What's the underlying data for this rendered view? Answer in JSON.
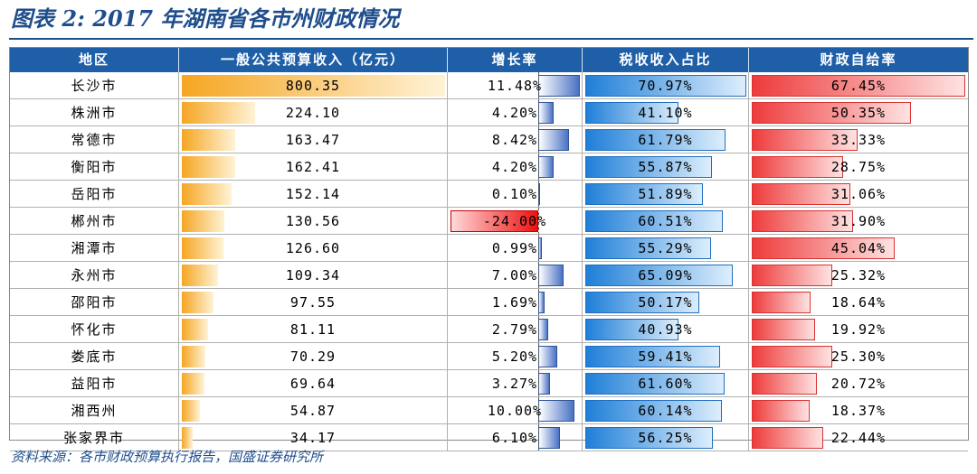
{
  "title": "图表 2:  2017 年湖南省各市州财政情况",
  "source": "资料来源：各市财政预算执行报告，国盛证券研究所",
  "colors": {
    "header_bg": "#1f5fa8",
    "revenue_bar": "#f5a623",
    "growth_positive_bar": "#4a72c4",
    "growth_negative_bar": "#ee1111",
    "tax_share_bar": "#1f7fd8",
    "self_sufficiency_bar": "#ee3b3b"
  },
  "chart_data": {
    "type": "table",
    "columns": [
      "地区",
      "一般公共预算收入（亿元）",
      "增长率",
      "税收收入占比",
      "财政自给率"
    ],
    "rows": [
      {
        "region": "长沙市",
        "revenue": "800.35",
        "growth": "11.48%",
        "tax_share": "70.97%",
        "self_sufficiency": "67.45%"
      },
      {
        "region": "株洲市",
        "revenue": "224.10",
        "growth": "4.20%",
        "tax_share": "41.10%",
        "self_sufficiency": "50.35%"
      },
      {
        "region": "常德市",
        "revenue": "163.47",
        "growth": "8.42%",
        "tax_share": "61.79%",
        "self_sufficiency": "33.33%"
      },
      {
        "region": "衡阳市",
        "revenue": "162.41",
        "growth": "4.20%",
        "tax_share": "55.87%",
        "self_sufficiency": "28.75%"
      },
      {
        "region": "岳阳市",
        "revenue": "152.14",
        "growth": "0.10%",
        "tax_share": "51.89%",
        "self_sufficiency": "31.06%"
      },
      {
        "region": "郴州市",
        "revenue": "130.56",
        "growth": "-24.00%",
        "tax_share": "60.51%",
        "self_sufficiency": "31.90%"
      },
      {
        "region": "湘潭市",
        "revenue": "126.60",
        "growth": "0.99%",
        "tax_share": "55.29%",
        "self_sufficiency": "45.04%"
      },
      {
        "region": "永州市",
        "revenue": "109.34",
        "growth": "7.00%",
        "tax_share": "65.09%",
        "self_sufficiency": "25.32%"
      },
      {
        "region": "邵阳市",
        "revenue": "97.55",
        "growth": "1.69%",
        "tax_share": "50.17%",
        "self_sufficiency": "18.64%"
      },
      {
        "region": "怀化市",
        "revenue": "81.11",
        "growth": "2.79%",
        "tax_share": "40.93%",
        "self_sufficiency": "19.92%"
      },
      {
        "region": "娄底市",
        "revenue": "70.29",
        "growth": "5.20%",
        "tax_share": "59.41%",
        "self_sufficiency": "25.30%"
      },
      {
        "region": "益阳市",
        "revenue": "69.64",
        "growth": "3.27%",
        "tax_share": "61.60%",
        "self_sufficiency": "20.72%"
      },
      {
        "region": "湘西州",
        "revenue": "54.87",
        "growth": "10.00%",
        "tax_share": "60.14%",
        "self_sufficiency": "18.37%"
      },
      {
        "region": "张家界市",
        "revenue": "34.17",
        "growth": "6.10%",
        "tax_share": "56.25%",
        "self_sufficiency": "22.44%"
      }
    ]
  }
}
